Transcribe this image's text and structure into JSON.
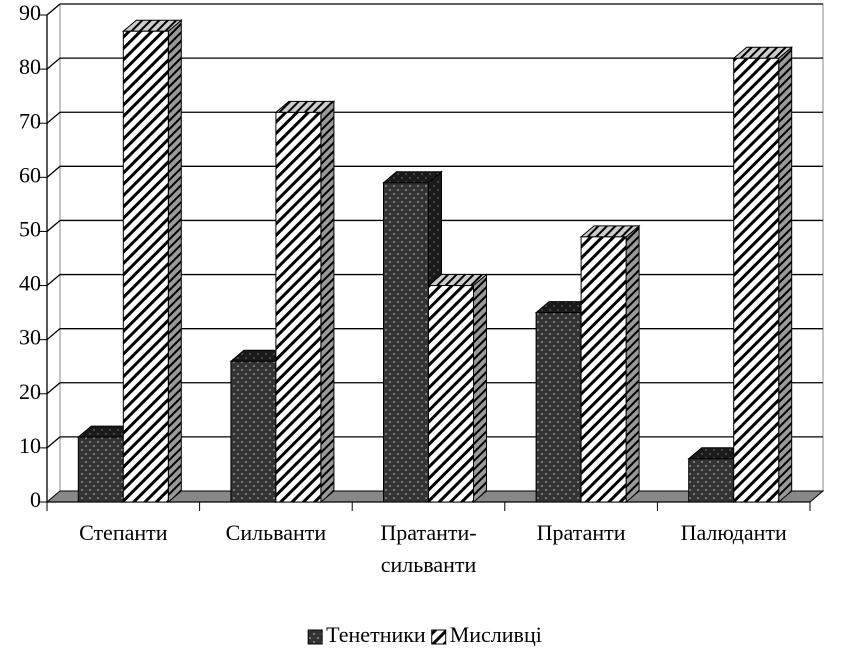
{
  "chart_data": {
    "type": "bar3d",
    "categories": [
      "Степанти",
      "Сильванти",
      "Пратанти-сильванти",
      "Пратанти",
      "Палюданти"
    ],
    "series": [
      {
        "name": "Тенетники",
        "color": "#333333",
        "values": [
          12,
          26,
          59,
          35,
          8
        ]
      },
      {
        "name": "Мисливці",
        "color": "#ffffff",
        "values": [
          87,
          72,
          40,
          49,
          82
        ]
      }
    ],
    "ylim": [
      0,
      90
    ],
    "yticks": [
      0,
      10,
      20,
      30,
      40,
      50,
      60,
      70,
      80,
      90
    ],
    "grid": true,
    "legend": "bottom"
  }
}
